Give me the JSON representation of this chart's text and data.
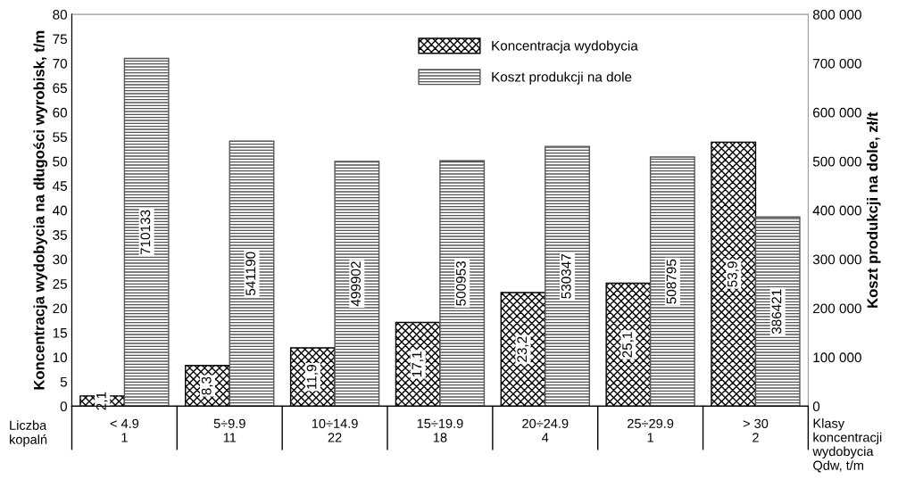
{
  "chart_data": {
    "type": "bar",
    "ylabel": "Koncentracja wydobycia na długości wyrobisk, t/m",
    "y2label": "Koszt produkcji na dole, zł/t",
    "categories": [
      "< 4.9\n1",
      "5÷9.9\n11",
      "10÷14.9\n22",
      "15÷19.9\n18",
      "20÷24.9\n4",
      "25÷29.9\n1",
      "> 30\n2"
    ],
    "series": [
      {
        "name": "Koncentracja wydobycia",
        "color": "#000000",
        "values": [
          2.1,
          8.3,
          11.9,
          17.1,
          23.2,
          25.1,
          53.9
        ],
        "value_labels": [
          "2,1",
          "8,3",
          "11,9",
          "17,1",
          "23,2",
          "25,1",
          "53,9"
        ]
      },
      {
        "name": "Koszt produkcji na dole",
        "color": "#555555",
        "axis": "y2",
        "values": [
          710133,
          541190,
          499902,
          500953,
          530347,
          508795,
          386421
        ],
        "value_labels": [
          "710133",
          "541190",
          "499902",
          "500953",
          "530347",
          "508795",
          "386421"
        ]
      }
    ],
    "ylim": [
      0,
      80
    ],
    "yticks": [
      0,
      5,
      10,
      15,
      20,
      25,
      30,
      35,
      40,
      45,
      50,
      55,
      60,
      65,
      70,
      75,
      80
    ],
    "y2lim": [
      0,
      800000
    ],
    "y2ticks": [
      0,
      {
        "value": 100000,
        "label": "100 000"
      },
      {
        "value": 200000,
        "label": "200 000"
      },
      {
        "value": 300000,
        "label": "300 000"
      },
      {
        "value": 400000,
        "label": "400 000"
      },
      {
        "value": 500000,
        "label": "500 000"
      },
      {
        "value": 600000,
        "label": "600 000"
      },
      {
        "value": 700000,
        "label": "700 000"
      },
      {
        "value": 800000,
        "label": "800 000"
      }
    ],
    "annotations": [
      "Liczba\nkopalń",
      "Klasy\nkoncentracji\nwydobycia\nQdw, t/m"
    ],
    "legend": "top",
    "grid": false
  }
}
